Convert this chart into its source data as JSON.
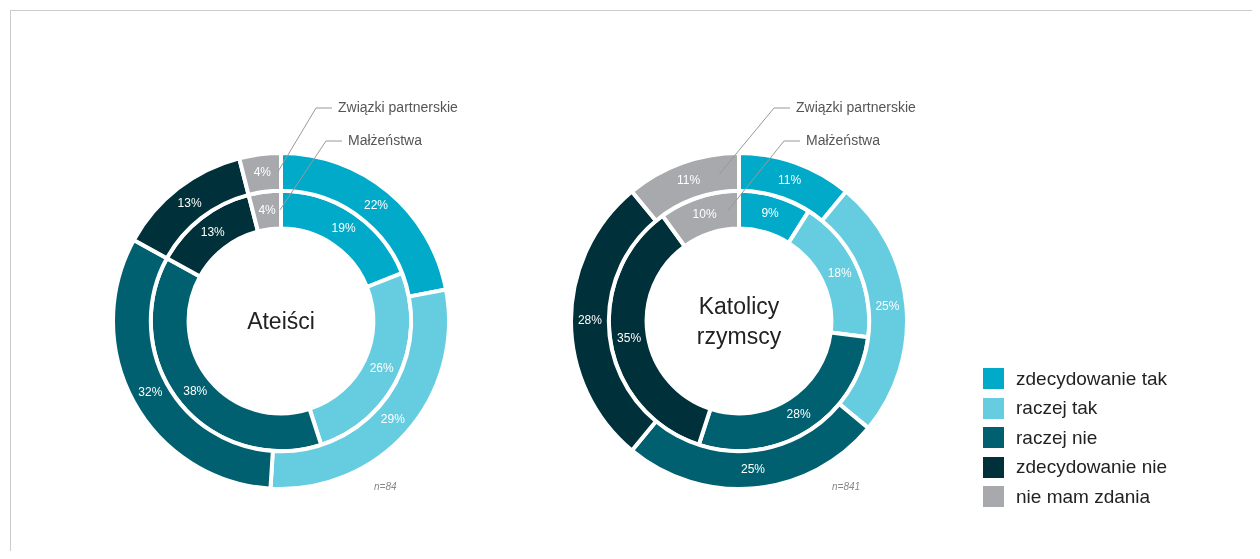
{
  "chart_data": [
    {
      "type": "donut",
      "title": "Ateiści",
      "categories": [
        "zdecydowanie tak",
        "raczej tak",
        "raczej nie",
        "zdecydowanie nie",
        "nie mam zdania"
      ],
      "colors": [
        "#00aac8",
        "#66cde0",
        "#006070",
        "#00303a",
        "#a7a9ac"
      ],
      "series": [
        {
          "name": "Związki partnerskie",
          "values": [
            22,
            29,
            32,
            13,
            4
          ],
          "value_labels": [
            "22%",
            "29%",
            "32%",
            "13%",
            "4%"
          ]
        },
        {
          "name": "Małżeństwa",
          "values": [
            19,
            26,
            38,
            13,
            4
          ],
          "value_labels": [
            "19%",
            "26%",
            "38%",
            "13%",
            "4%"
          ]
        }
      ],
      "annotations": [
        "n=84"
      ],
      "legend": "right"
    },
    {
      "type": "donut",
      "title": "Katolicy rzymscy",
      "categories": [
        null,
        null,
        null,
        null,
        null
      ],
      "colors": [
        "#00aac8",
        "#66cde0",
        "#006070",
        "#00303a",
        "#a7a9ac"
      ],
      "series": [
        {
          "name": "Związki partnerskie",
          "values": [
            11,
            25,
            25,
            28,
            11
          ],
          "value_labels": [
            "11%",
            "25%",
            "25%",
            "28%",
            "11%"
          ]
        },
        {
          "name": "Małżeństwa",
          "values": [
            9,
            18,
            28,
            35,
            10
          ],
          "value_labels": [
            "9%",
            "18%",
            "28%",
            "35%",
            "10%"
          ]
        }
      ],
      "annotations": [
        "n=841"
      ]
    }
  ]
}
